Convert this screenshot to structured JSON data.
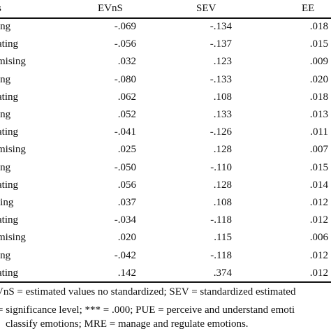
{
  "table": {
    "headers": {
      "label": "s",
      "evns": "EVnS",
      "sev": "SEV",
      "ee": "EE"
    },
    "rows": [
      {
        "label": "ing",
        "evns": "-.069",
        "sev": "-.134",
        "ee": ".018"
      },
      {
        "label": "ating",
        "evns": "-.056",
        "sev": "-.137",
        "ee": ".015"
      },
      {
        "label": "mising",
        "evns": ".032",
        "sev": ".123",
        "ee": ".009"
      },
      {
        "label": "ing",
        "evns": "-.080",
        "sev": "-.133",
        "ee": ".020"
      },
      {
        "label": "ating",
        "evns": ".062",
        "sev": ".108",
        "ee": ".018"
      },
      {
        "label": "ing",
        "evns": ".052",
        "sev": ".133",
        "ee": ".013"
      },
      {
        "label": "ating",
        "evns": "-.041",
        "sev": "-.126",
        "ee": ".011"
      },
      {
        "label": "mising",
        "evns": ".025",
        "sev": ".128",
        "ee": ".007"
      },
      {
        "label": "ing",
        "evns": "-.050",
        "sev": "-.110",
        "ee": ".015"
      },
      {
        "label": "ating",
        "evns": ".056",
        "sev": ".128",
        "ee": ".014"
      },
      {
        "label": "ting",
        "evns": ".037",
        "sev": ".108",
        "ee": ".012"
      },
      {
        "label": "ating",
        "evns": "-.034",
        "sev": "-.118",
        "ee": ".012"
      },
      {
        "label": "mising",
        "evns": ".020",
        "sev": ".115",
        "ee": ".006"
      },
      {
        "label": "ing",
        "evns": "-.042",
        "sev": "-.118",
        "ee": ".012"
      },
      {
        "label": "ating",
        "evns": ".142",
        "sev": ".374",
        "ee": ".012"
      }
    ]
  },
  "notes": {
    "line1": "VnS = estimated values no standardized; SEV = standardized estimated",
    "line2": "= significance level; *** = .000; PUE = perceive and understand emoti",
    "line3": "classify emotions; MRE = manage and regulate emotions."
  }
}
